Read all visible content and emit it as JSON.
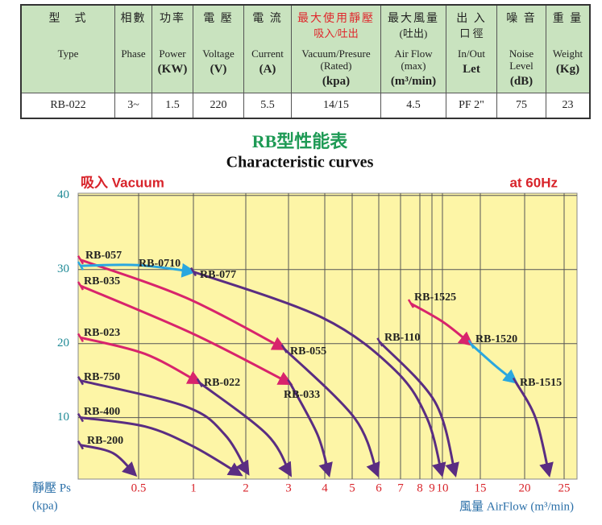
{
  "table": {
    "columns": [
      {
        "zh": "型　式",
        "en": "Type"
      },
      {
        "zh": "相數",
        "en": "Phase"
      },
      {
        "zh": "功率",
        "en": "Power",
        "unit": "(KW)"
      },
      {
        "zh": "電 壓",
        "en": "Voltage",
        "unit": "(V)"
      },
      {
        "zh": "電 流",
        "en": "Current",
        "unit": "(A)"
      },
      {
        "zh": "最大使用靜壓",
        "zh2": "吸入/吐出",
        "zh_color": "#e0262b",
        "en": "Vacuum/Presure",
        "en2": "(Rated)",
        "unit": "(kpa)"
      },
      {
        "zh": "最大風量",
        "zh2": "(吐出)",
        "en": "Air Flow (max)",
        "unit": "(m³/min)"
      },
      {
        "zh": "出 入",
        "zh2": "口 徑",
        "en": "In/Out",
        "unit": "Let"
      },
      {
        "zh": "噪 音",
        "en": "Noise Level",
        "unit": "(dB)"
      },
      {
        "zh": "重 量",
        "en": "Weight",
        "unit": "(Kg)"
      }
    ],
    "rows": [
      [
        "RB-022",
        "3~",
        "1.5",
        "220",
        "5.5",
        "14/15",
        "4.5",
        "PF 2\"",
        "75",
        "23"
      ]
    ]
  },
  "chart_data": {
    "type": "line",
    "title": "RB型性能表",
    "subtitle": "Characteristic curves",
    "annotations": [
      "吸入 Vacuum",
      "at 60Hz"
    ],
    "y_label": "靜壓 Ps",
    "y_unit": "(kpa)",
    "x_label": "風量 AirFlow (m³/min)",
    "xlim": [
      0,
      26.6
    ],
    "ylim": [
      1.7,
      40.3
    ],
    "xticks": [
      0.5,
      1,
      2,
      3,
      4,
      5,
      6,
      7,
      8,
      9,
      10,
      15,
      20,
      25
    ],
    "yticks": [
      10,
      20,
      30,
      40
    ],
    "grid": true,
    "background": "#fdf5a6",
    "series": [
      {
        "name": "RB-057",
        "color": "#d8246c",
        "x": [
          0,
          0.93,
          2.9
        ],
        "values": [
          31.3,
          26.2,
          19.3
        ]
      },
      {
        "name": "RB-0710",
        "color": "#2aa7df",
        "x": [
          0,
          0.49,
          1
        ],
        "values": [
          30.5,
          30.6,
          29.7
        ]
      },
      {
        "name": "RB-077",
        "color": "#5a2d82",
        "x": [
          1,
          3.93,
          6.75,
          8.6,
          9.95
        ],
        "values": [
          29.7,
          23.5,
          16.4,
          9.9,
          2.3
        ]
      },
      {
        "name": "RB-035",
        "color": "#d8246c",
        "x": [
          0,
          1,
          3.05
        ],
        "values": [
          27.8,
          21.3,
          14.6
        ]
      },
      {
        "name": "RB-023",
        "color": "#d8246c",
        "x": [
          0,
          0.56,
          1.12
        ],
        "values": [
          20.8,
          18.6,
          14.7
        ]
      },
      {
        "name": "RB-750",
        "color": "#5a2d82",
        "x": [
          0,
          0.93,
          1.6,
          2.05
        ],
        "values": [
          15,
          11.5,
          7.7,
          2.5
        ]
      },
      {
        "name": "RB-400",
        "color": "#5a2d82",
        "x": [
          0,
          0.56,
          1,
          1.9
        ],
        "values": [
          10,
          8.8,
          6.1,
          2.3
        ]
      },
      {
        "name": "RB-200",
        "color": "#5a2d82",
        "x": [
          0,
          0.28,
          0.47
        ],
        "values": [
          6.3,
          5.2,
          2.3
        ]
      },
      {
        "name": "RB-055",
        "color": "#5a2d82",
        "x": [
          2.9,
          5.1,
          5.95
        ],
        "values": [
          19.3,
          9.9,
          2.3
        ]
      },
      {
        "name": "RB-022",
        "color": "#5a2d82",
        "x": [
          1.12,
          2.5,
          3.05
        ],
        "values": [
          14.7,
          7.7,
          2.3
        ]
      },
      {
        "name": "RB-033",
        "color": "#5a2d82",
        "x": [
          3.05,
          3.8,
          4.15
        ],
        "values": [
          14.6,
          7.7,
          2.3
        ]
      },
      {
        "name": "RB-110",
        "color": "#5a2d82",
        "x": [
          6.05,
          9.3,
          11.7
        ],
        "values": [
          20.2,
          12.1,
          2.3
        ]
      },
      {
        "name": "RB-1525",
        "color": "#d8246c",
        "x": [
          7.54,
          10.1,
          13.8
        ],
        "values": [
          25.4,
          22.9,
          19.9
        ]
      },
      {
        "name": "RB-1520",
        "color": "#2aa7df",
        "x": [
          13.8,
          16.7,
          19
        ],
        "values": [
          19.9,
          17,
          14.8
        ]
      },
      {
        "name": "RB-1515",
        "color": "#5a2d82",
        "x": [
          19,
          21.4,
          23.1
        ],
        "values": [
          14.8,
          9.9,
          2.3
        ]
      }
    ]
  }
}
